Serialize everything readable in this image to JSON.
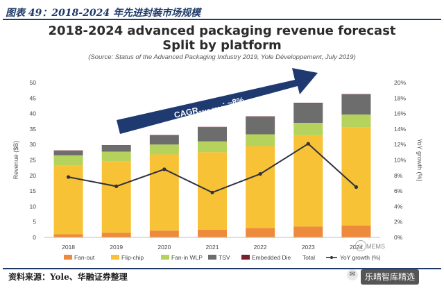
{
  "figure": {
    "title": "图表 49：2018-2024 年先进封装市场规模",
    "source": "资料来源：Yole、华融证券整理",
    "watermark_mems": "MEMS",
    "watermark_brand": "乐晴智库精选"
  },
  "chart_data": {
    "type": "bar",
    "stacked": true,
    "title": "2018-2024 advanced packaging revenue forecast",
    "title_line2": "Split by platform",
    "subtitle": "(Source: Status of the Advanced Packaging Industry 2019, Yole Développement, July 2019)",
    "categories": [
      "2018",
      "2019",
      "2020",
      "2021",
      "2022",
      "2023",
      "2024"
    ],
    "ylabel": "Revenue ($B)",
    "ylabel_right": "YoY growth (%)",
    "ylim": [
      0,
      50
    ],
    "yticks": [
      0,
      5,
      10,
      15,
      20,
      25,
      30,
      35,
      40,
      45,
      50
    ],
    "y2lim": [
      0,
      20
    ],
    "y2ticks": [
      "0%",
      "2%",
      "4%",
      "6%",
      "8%",
      "10%",
      "12%",
      "14%",
      "16%",
      "18%",
      "20%"
    ],
    "series": [
      {
        "name": "Fan-out",
        "color": "#ee8a3c",
        "values": [
          1.0,
          1.5,
          2.2,
          2.5,
          3.0,
          3.5,
          3.8
        ]
      },
      {
        "name": "Flip-chip",
        "color": "#f8c236",
        "values": [
          22.3,
          23.0,
          24.6,
          25.0,
          26.5,
          29.5,
          31.7
        ]
      },
      {
        "name": "Fan-in WLP",
        "color": "#b5d25d",
        "values": [
          3.2,
          3.2,
          3.2,
          3.5,
          3.8,
          4.0,
          4.2
        ]
      },
      {
        "name": "TSV",
        "color": "#6d6d6d",
        "values": [
          1.5,
          2.0,
          3.0,
          4.6,
          5.7,
          6.4,
          6.5
        ]
      },
      {
        "name": "Embedded Die",
        "color": "#7b1f2c",
        "values": [
          0.1,
          0.1,
          0.1,
          0.1,
          0.1,
          0.1,
          0.1
        ]
      }
    ],
    "legend_extra": "Total",
    "line_series": {
      "name": "YoY growth (%)",
      "color": "#2d3140",
      "values": [
        7.8,
        6.6,
        8.8,
        5.8,
        8.2,
        12.1,
        6.5
      ]
    },
    "annotation": {
      "text_main": "CAGR",
      "text_sub": "2018-2024",
      "text_tail": ": ~8%",
      "color": "#1e3a70"
    },
    "grid": false,
    "legend_position": "bottom"
  }
}
